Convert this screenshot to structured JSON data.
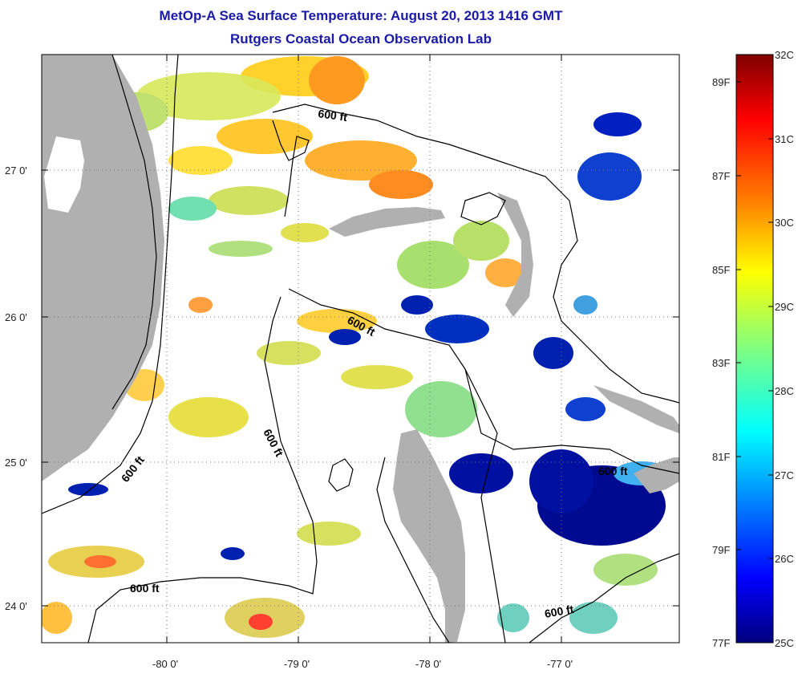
{
  "title": "MetOp-A Sea Surface Temperature:  August 20, 2013 1416 GMT",
  "subtitle": "Rutgers Coastal Ocean Observation Lab",
  "axes": {
    "x_ticks": [
      "-80 0'",
      "-79 0'",
      "-78 0'",
      "-77 0'"
    ],
    "y_ticks": [
      "27 0'",
      "26 0'",
      "25 0'",
      "24 0'"
    ]
  },
  "contour_label": "600 ft",
  "colorbar": {
    "celsius_labels": [
      "32C",
      "31C",
      "30C",
      "29C",
      "28C",
      "27C",
      "26C",
      "25C"
    ],
    "fahrenheit_labels": [
      "89F",
      "87F",
      "85F",
      "83F",
      "81F",
      "79F",
      "77F"
    ],
    "range_c": [
      25,
      32
    ],
    "colors": [
      "#00007f",
      "#0000ff",
      "#0080ff",
      "#00ffff",
      "#80ff80",
      "#ffff00",
      "#ff8000",
      "#ff0000",
      "#7f0000"
    ]
  },
  "colors": {
    "land": "#b0b0b0",
    "title": "#1a1aa6"
  }
}
